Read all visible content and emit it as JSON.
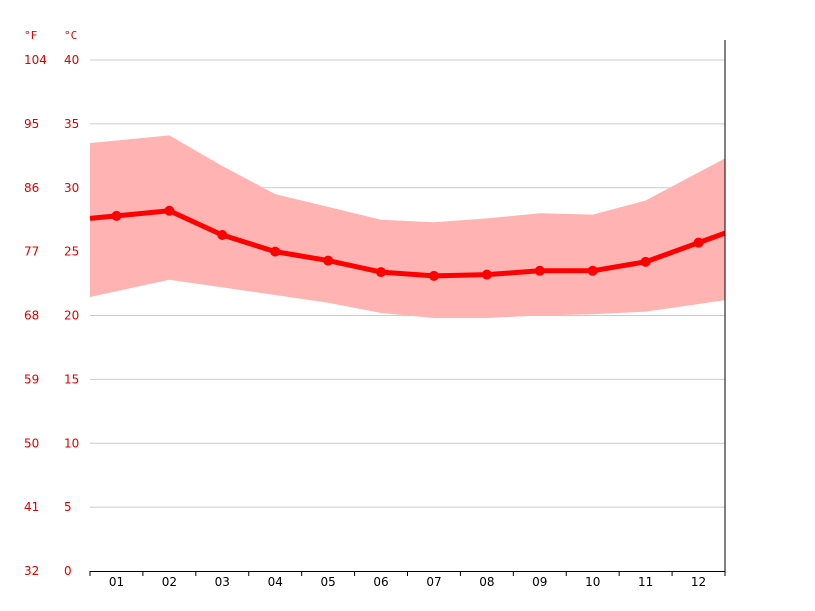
{
  "chart_data": {
    "type": "line",
    "colors": {
      "band": "#ffb3b3",
      "line": "#ff0000",
      "axis_text": "#e00000",
      "grid": "#cccccc",
      "axis": "#000000"
    },
    "units": {
      "left": "°F",
      "right": "°C"
    },
    "categories": [
      "01",
      "02",
      "03",
      "04",
      "05",
      "06",
      "07",
      "08",
      "09",
      "10",
      "11",
      "12"
    ],
    "ylim": [
      0,
      40
    ],
    "y_ticks_c": [
      "0",
      "5",
      "10",
      "15",
      "20",
      "25",
      "30",
      "35",
      "40"
    ],
    "y_ticks_f": [
      "32",
      "41",
      "50",
      "59",
      "68",
      "77",
      "86",
      "95",
      "104"
    ],
    "grid": true,
    "series": [
      {
        "values": [
          27.8,
          28.2,
          26.3,
          25.0,
          24.3,
          23.4,
          23.1,
          23.2,
          23.5,
          23.5,
          24.2,
          25.7
        ]
      },
      {
        "values": [
          21.9,
          22.8,
          22.2,
          21.6,
          21.0,
          20.2,
          19.8,
          19.8,
          20.0,
          20.1,
          20.3,
          20.9
        ]
      },
      {
        "values": [
          33.7,
          34.1,
          31.7,
          29.5,
          28.5,
          27.5,
          27.3,
          27.6,
          28.0,
          27.9,
          29.0,
          31.2
        ]
      }
    ]
  }
}
